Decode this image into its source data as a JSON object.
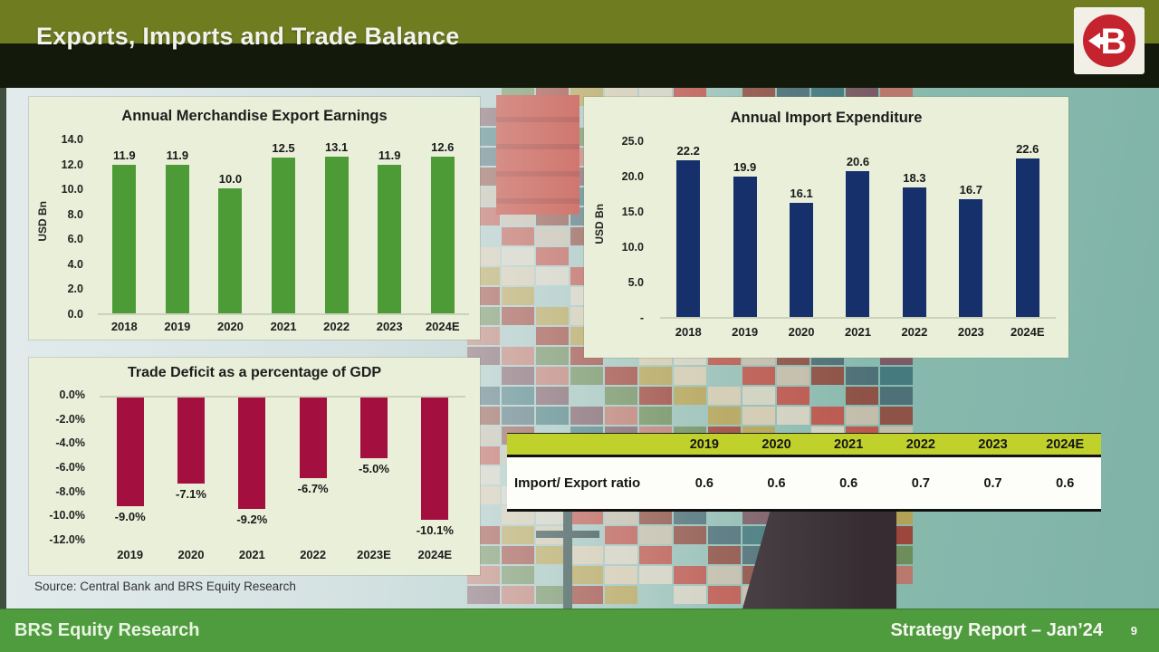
{
  "slide": {
    "title": "Exports, Imports and Trade Balance",
    "logo_letter": "B",
    "source_note": "Source: Central Bank and BRS Equity Research",
    "footer_left": "BRS Equity Research",
    "footer_right": "Strategy Report – Jan’24",
    "page_number": "9"
  },
  "colors": {
    "title_bar_olive": "#6f7c20",
    "title_bar_dark": "#141a0b",
    "panel_bg": "#e9efd8",
    "export_bar": "#4d9b37",
    "import_bar": "#16306b",
    "deficit_bar": "#a30f3e",
    "table_header_bg": "#c1d12c",
    "footer_bg": "#4f9c3f",
    "logo_red": "#c5232e"
  },
  "chart_data": [
    {
      "type": "bar",
      "title": "Annual Merchandise Export Earnings",
      "ylabel": "USD Bn",
      "categories": [
        "2018",
        "2019",
        "2020",
        "2021",
        "2022",
        "2023",
        "2024E"
      ],
      "values": [
        11.9,
        11.9,
        10.0,
        12.5,
        13.1,
        11.9,
        12.6
      ],
      "data_labels": [
        "11.9",
        "11.9",
        "10.0",
        "12.5",
        "13.1",
        "11.9",
        "12.6"
      ],
      "ylim": [
        0,
        14
      ],
      "yticks": [
        "14.0",
        "12.0",
        "10.0",
        "8.0",
        "6.0",
        "4.0",
        "2.0",
        "0.0"
      ],
      "bar_color": "#4d9b37",
      "grid": false,
      "legend": "none"
    },
    {
      "type": "bar",
      "title": "Annual Import Expenditure",
      "ylabel": "USD Bn",
      "categories": [
        "2018",
        "2019",
        "2020",
        "2021",
        "2022",
        "2023",
        "2024E"
      ],
      "values": [
        22.2,
        19.9,
        16.1,
        20.6,
        18.3,
        16.7,
        22.6
      ],
      "data_labels": [
        "22.2",
        "19.9",
        "16.1",
        "20.6",
        "18.3",
        "16.7",
        "22.6"
      ],
      "ylim": [
        0,
        25
      ],
      "yticks": [
        "25.0",
        "20.0",
        "15.0",
        "10.0",
        "5.0",
        "-"
      ],
      "bar_color": "#16306b",
      "grid": false,
      "legend": "none"
    },
    {
      "type": "bar",
      "title": "Trade Deficit as a percentage of GDP",
      "ylabel": "",
      "categories": [
        "2019",
        "2020",
        "2021",
        "2022",
        "2023E",
        "2024E"
      ],
      "values": [
        -9.0,
        -7.1,
        -9.2,
        -6.7,
        -5.0,
        -10.1
      ],
      "data_labels": [
        "-9.0%",
        "-7.1%",
        "-9.2%",
        "-6.7%",
        "-5.0%",
        "-10.1%"
      ],
      "ylim": [
        -12,
        0
      ],
      "yticks": [
        "0.0%",
        "-2.0%",
        "-4.0%",
        "-6.0%",
        "-8.0%",
        "-10.0%",
        "-12.0%"
      ],
      "bar_color": "#a30f3e",
      "grid": false,
      "legend": "none"
    }
  ],
  "table": {
    "header": [
      "",
      "2019",
      "2020",
      "2021",
      "2022",
      "2023",
      "2024E"
    ],
    "rows": [
      {
        "label": "Import/ Export ratio",
        "values": [
          "0.6",
          "0.6",
          "0.6",
          "0.7",
          "0.7",
          "0.6"
        ]
      }
    ]
  }
}
